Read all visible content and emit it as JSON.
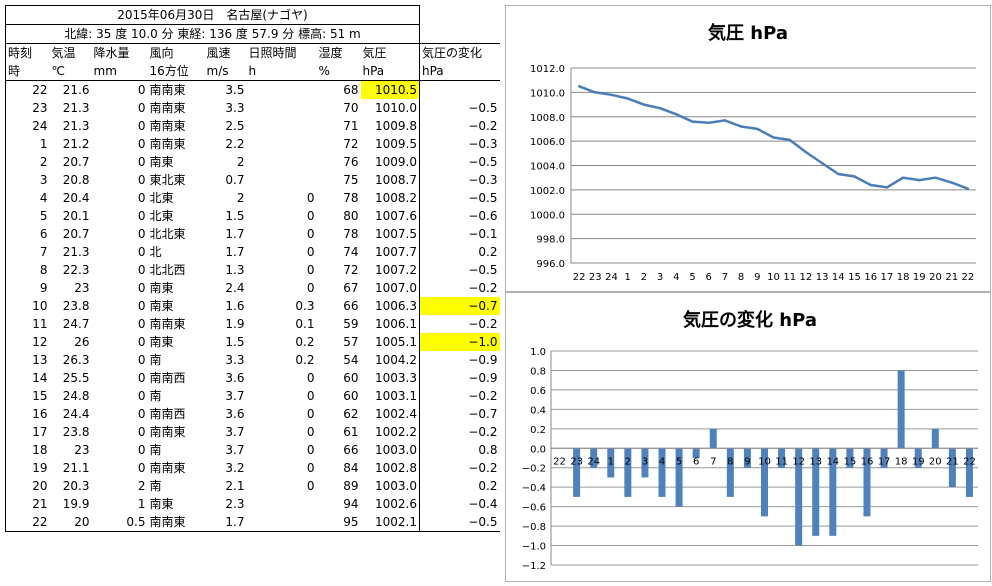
{
  "sheet": {
    "header1": "2015年06月30日　名古屋(ナゴヤ)",
    "header2": "北緯:  35 度 10.0 分  東経:  136 度 57.9 分  標高: 51  m",
    "columns": [
      "時刻",
      "気温",
      "降水量",
      "風向",
      "風速",
      "日照時間",
      "湿度",
      "気圧",
      "気圧の変化"
    ],
    "units": [
      "時",
      "℃",
      "mm",
      "16方位",
      "m/s",
      "h",
      "%",
      "hPa",
      "hPa"
    ],
    "rows": [
      {
        "time": "22",
        "temp": "21.6",
        "rain": "0",
        "dir": "南南東",
        "wind": "3.5",
        "sun": "",
        "hum": "68",
        "press": "1010.5",
        "delta": ""
      },
      {
        "time": "23",
        "temp": "21.3",
        "rain": "0",
        "dir": "南南東",
        "wind": "3.3",
        "sun": "",
        "hum": "70",
        "press": "1010.0",
        "delta": "-0.5"
      },
      {
        "time": "24",
        "temp": "21.3",
        "rain": "0",
        "dir": "南南東",
        "wind": "2.5",
        "sun": "",
        "hum": "71",
        "press": "1009.8",
        "delta": "-0.2"
      },
      {
        "time": "1",
        "temp": "21.2",
        "rain": "0",
        "dir": "南南東",
        "wind": "2.2",
        "sun": "",
        "hum": "72",
        "press": "1009.5",
        "delta": "-0.3"
      },
      {
        "time": "2",
        "temp": "20.7",
        "rain": "0",
        "dir": "南東",
        "wind": "2",
        "sun": "",
        "hum": "76",
        "press": "1009.0",
        "delta": "-0.5"
      },
      {
        "time": "3",
        "temp": "20.8",
        "rain": "0",
        "dir": "東北東",
        "wind": "0.7",
        "sun": "",
        "hum": "75",
        "press": "1008.7",
        "delta": "-0.3"
      },
      {
        "time": "4",
        "temp": "20.4",
        "rain": "0",
        "dir": "北東",
        "wind": "2",
        "sun": "0",
        "hum": "78",
        "press": "1008.2",
        "delta": "-0.5"
      },
      {
        "time": "5",
        "temp": "20.1",
        "rain": "0",
        "dir": "北東",
        "wind": "1.5",
        "sun": "0",
        "hum": "80",
        "press": "1007.6",
        "delta": "-0.6"
      },
      {
        "time": "6",
        "temp": "20.7",
        "rain": "0",
        "dir": "北北東",
        "wind": "1.7",
        "sun": "0",
        "hum": "78",
        "press": "1007.5",
        "delta": "-0.1"
      },
      {
        "time": "7",
        "temp": "21.3",
        "rain": "0",
        "dir": "北",
        "wind": "1.7",
        "sun": "0",
        "hum": "74",
        "press": "1007.7",
        "delta": "0.2"
      },
      {
        "time": "8",
        "temp": "22.3",
        "rain": "0",
        "dir": "北北西",
        "wind": "1.3",
        "sun": "0",
        "hum": "72",
        "press": "1007.2",
        "delta": "-0.5"
      },
      {
        "time": "9",
        "temp": "23",
        "rain": "0",
        "dir": "南東",
        "wind": "2.4",
        "sun": "0",
        "hum": "67",
        "press": "1007.0",
        "delta": "-0.2"
      },
      {
        "time": "10",
        "temp": "23.8",
        "rain": "0",
        "dir": "南東",
        "wind": "1.6",
        "sun": "0.3",
        "hum": "66",
        "press": "1006.3",
        "delta": "-0.7"
      },
      {
        "time": "11",
        "temp": "24.7",
        "rain": "0",
        "dir": "南南東",
        "wind": "1.9",
        "sun": "0.1",
        "hum": "59",
        "press": "1006.1",
        "delta": "-0.2"
      },
      {
        "time": "12",
        "temp": "26",
        "rain": "0",
        "dir": "南東",
        "wind": "1.5",
        "sun": "0.2",
        "hum": "57",
        "press": "1005.1",
        "delta": "-1.0"
      },
      {
        "time": "13",
        "temp": "26.3",
        "rain": "0",
        "dir": "南",
        "wind": "3.3",
        "sun": "0.2",
        "hum": "54",
        "press": "1004.2",
        "delta": "-0.9"
      },
      {
        "time": "14",
        "temp": "25.5",
        "rain": "0",
        "dir": "南南西",
        "wind": "3.6",
        "sun": "0",
        "hum": "60",
        "press": "1003.3",
        "delta": "-0.9"
      },
      {
        "time": "15",
        "temp": "24.8",
        "rain": "0",
        "dir": "南",
        "wind": "3.7",
        "sun": "0",
        "hum": "60",
        "press": "1003.1",
        "delta": "-0.2"
      },
      {
        "time": "16",
        "temp": "24.4",
        "rain": "0",
        "dir": "南南西",
        "wind": "3.6",
        "sun": "0",
        "hum": "62",
        "press": "1002.4",
        "delta": "-0.7"
      },
      {
        "time": "17",
        "temp": "23.8",
        "rain": "0",
        "dir": "南南東",
        "wind": "3.7",
        "sun": "0",
        "hum": "61",
        "press": "1002.2",
        "delta": "-0.2"
      },
      {
        "time": "18",
        "temp": "23",
        "rain": "0",
        "dir": "南",
        "wind": "3.7",
        "sun": "0",
        "hum": "66",
        "press": "1003.0",
        "delta": "0.8"
      },
      {
        "time": "19",
        "temp": "21.1",
        "rain": "0",
        "dir": "南南東",
        "wind": "3.2",
        "sun": "0",
        "hum": "84",
        "press": "1002.8",
        "delta": "-0.2"
      },
      {
        "time": "20",
        "temp": "20.3",
        "rain": "2",
        "dir": "南",
        "wind": "2.1",
        "sun": "0",
        "hum": "89",
        "press": "1003.0",
        "delta": "0.2"
      },
      {
        "time": "21",
        "temp": "19.9",
        "rain": "1",
        "dir": "南東",
        "wind": "2.3",
        "sun": "",
        "hum": "94",
        "press": "1002.6",
        "delta": "-0.4"
      },
      {
        "time": "22",
        "temp": "20",
        "rain": "0.5",
        "dir": "南南東",
        "wind": "1.7",
        "sun": "",
        "hum": "95",
        "press": "1002.1",
        "delta": "-0.5"
      }
    ],
    "highlight_color": "#ffff00",
    "highlighted_cells": [
      {
        "row": 0,
        "col": "press"
      },
      {
        "row": 12,
        "col": "delta"
      },
      {
        "row": 14,
        "col": "delta"
      }
    ]
  },
  "chart_data": [
    {
      "type": "line",
      "title": "気圧 hPa",
      "categories": [
        "22",
        "23",
        "24",
        "1",
        "2",
        "3",
        "4",
        "5",
        "6",
        "7",
        "8",
        "9",
        "10",
        "11",
        "12",
        "13",
        "14",
        "15",
        "16",
        "17",
        "18",
        "19",
        "20",
        "21",
        "22"
      ],
      "values": [
        1010.5,
        1010.0,
        1009.8,
        1009.5,
        1009.0,
        1008.7,
        1008.2,
        1007.6,
        1007.5,
        1007.7,
        1007.2,
        1007.0,
        1006.3,
        1006.1,
        1005.1,
        1004.2,
        1003.3,
        1003.1,
        1002.4,
        1002.2,
        1003.0,
        1002.8,
        1003.0,
        1002.6,
        1002.1
      ],
      "ylim": [
        996.0,
        1012.0
      ],
      "yticks": [
        "996.0",
        "998.0",
        "1000.0",
        "1002.0",
        "1004.0",
        "1006.0",
        "1008.0",
        "1010.0",
        "1012.0"
      ],
      "grid": true,
      "color": "#4a7ebb"
    },
    {
      "type": "bar",
      "title": "気圧の変化 hPa",
      "categories": [
        "22",
        "23",
        "24",
        "1",
        "2",
        "3",
        "4",
        "5",
        "6",
        "7",
        "8",
        "9",
        "10",
        "11",
        "12",
        "13",
        "14",
        "15",
        "16",
        "17",
        "18",
        "19",
        "20",
        "21",
        "22"
      ],
      "values": [
        0,
        -0.5,
        -0.2,
        -0.3,
        -0.5,
        -0.3,
        -0.5,
        -0.6,
        -0.1,
        0.2,
        -0.5,
        -0.2,
        -0.7,
        -0.2,
        -1.0,
        -0.9,
        -0.9,
        -0.2,
        -0.7,
        -0.2,
        0.8,
        -0.2,
        0.2,
        -0.4,
        -0.5
      ],
      "ylim": [
        -1.2,
        1.0
      ],
      "yticks": [
        "-1.2",
        "-1.0",
        "-0.8",
        "-0.6",
        "-0.4",
        "-0.2",
        "0.0",
        "0.2",
        "0.4",
        "0.6",
        "0.8",
        "1.0"
      ],
      "grid": true,
      "color": "#4f81bd"
    }
  ]
}
